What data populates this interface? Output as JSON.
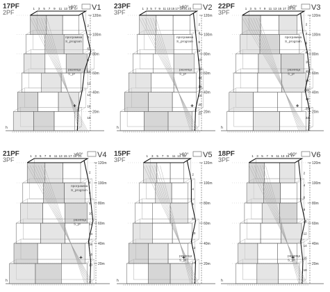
{
  "sheet": {
    "angle_label": ">60°",
    "height_labels": [
      "20m",
      "40m",
      "60m",
      "80m",
      "100m",
      "120m"
    ],
    "program_label": [
      "программа",
      "S_program"
    ],
    "difference_label": [
      "разница",
      "S_pr"
    ],
    "axis_mark": "h"
  },
  "colors": {
    "line": "#555555",
    "light_line": "#9a9a9a",
    "fill": "#cfcfcf",
    "dark_fill": "#b4b4b4",
    "thick": "#111111"
  },
  "variants": [
    {
      "id": "V1",
      "pf_main": "17PF",
      "pf_sub": "2PF",
      "angle_label": ">60°",
      "heights_shown": [
        "20m",
        "40m",
        "60m",
        "80m",
        "100m",
        "120m"
      ],
      "show_program": true,
      "show_difference": true,
      "node_numbers": [
        "1",
        "2",
        "3",
        "4",
        "5",
        "6",
        "7",
        "8",
        "9",
        "10",
        "11",
        "12",
        "13",
        "14",
        "15",
        "16",
        "17",
        "18"
      ]
    },
    {
      "id": "V2",
      "pf_main": "23PF",
      "pf_sub": "3PF",
      "angle_label": ">60°",
      "heights_shown": [
        "20m",
        "40m",
        "60m",
        "80m",
        "100m",
        "120m"
      ],
      "show_program": true,
      "show_difference": true,
      "node_numbers": [
        "1",
        "2",
        "3",
        "4",
        "5",
        "6",
        "7",
        "8",
        "9",
        "10",
        "11",
        "12",
        "13",
        "14",
        "15",
        "16",
        "17",
        "18",
        "19",
        "20",
        "21",
        "22",
        "23"
      ]
    },
    {
      "id": "V3",
      "pf_main": "22PF",
      "pf_sub": "3PF",
      "angle_label": ">60°",
      "heights_shown": [
        "20m",
        "40m",
        "60m",
        "80m",
        "100m",
        "120m"
      ],
      "show_program": true,
      "show_difference": true,
      "node_numbers": [
        "1",
        "2",
        "3",
        "4",
        "5",
        "6",
        "7",
        "8",
        "9",
        "10",
        "11",
        "12",
        "13",
        "14",
        "15",
        "16",
        "17",
        "18",
        "19",
        "20",
        "21",
        "22"
      ]
    },
    {
      "id": "V4",
      "pf_main": "21PF",
      "pf_sub": "3PF",
      "angle_label": ">60°",
      "heights_shown": [
        "20m",
        "40m",
        "60m",
        "80m",
        "100m",
        "120m"
      ],
      "show_program": true,
      "show_difference": true,
      "node_numbers": [
        "1",
        "2",
        "3",
        "4",
        "5",
        "6",
        "7",
        "8",
        "9",
        "10",
        "11",
        "12",
        "13",
        "14",
        "15",
        "16",
        "17",
        "18",
        "19",
        "20",
        "21"
      ]
    },
    {
      "id": "V5",
      "pf_main": "15PF",
      "pf_sub": "3PF",
      "angle_label": ">60°",
      "heights_shown": [
        "20m",
        "40m",
        "60m",
        "80m",
        "100m",
        "120m"
      ],
      "show_program": false,
      "show_difference": true,
      "node_numbers": [
        "1",
        "2",
        "3",
        "4",
        "5",
        "6",
        "7",
        "8",
        "9",
        "10",
        "11",
        "12",
        "13",
        "14",
        "15"
      ]
    },
    {
      "id": "V6",
      "pf_main": "18PF",
      "pf_sub": "3PF",
      "angle_label": ">60°",
      "heights_shown": [
        "20m",
        "40m",
        "60m",
        "80m",
        "100m",
        "120m"
      ],
      "show_program": false,
      "show_difference": true,
      "node_numbers": [
        "1",
        "2",
        "3",
        "4",
        "5",
        "6",
        "7",
        "8",
        "9",
        "10",
        "11",
        "12",
        "13",
        "14",
        "15",
        "16",
        "17",
        "18"
      ]
    }
  ]
}
